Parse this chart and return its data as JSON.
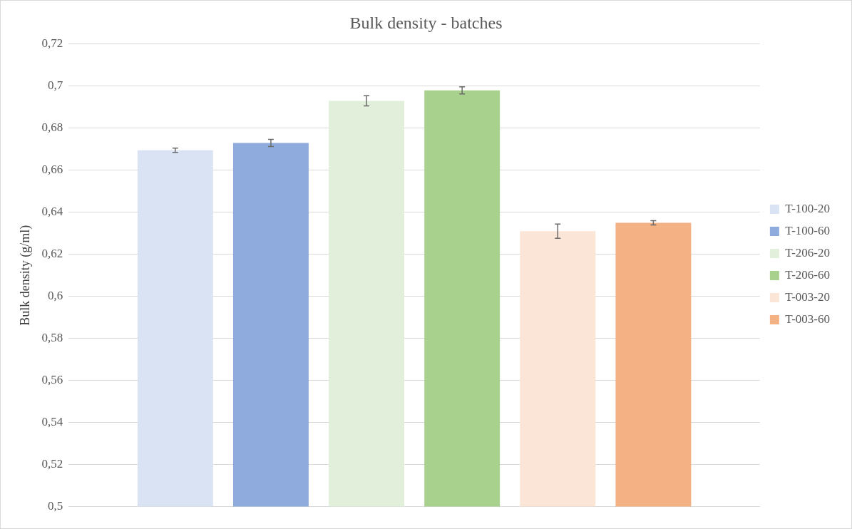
{
  "chart_data": {
    "type": "bar",
    "title": "Bulk density - batches",
    "ylabel": "Bulk density (g/ml)",
    "categories": [
      null
    ],
    "series": [
      {
        "name": "T-100-20",
        "color": "#dae3f3",
        "values": [
          0.6695
        ],
        "errors": [
          0.001
        ]
      },
      {
        "name": "T-100-60",
        "color": "#8faadc",
        "values": [
          0.673
        ],
        "errors": [
          0.0017
        ]
      },
      {
        "name": "T-206-20",
        "color": "#e2efda",
        "values": [
          0.693
        ],
        "errors": [
          0.0024
        ]
      },
      {
        "name": "T-206-60",
        "color": "#a9d18e",
        "values": [
          0.698
        ],
        "errors": [
          0.0017
        ]
      },
      {
        "name": "T-003-20",
        "color": "#fbe5d6",
        "values": [
          0.631
        ],
        "errors": [
          0.0034
        ]
      },
      {
        "name": "T-003-60",
        "color": "#f4b183",
        "values": [
          0.635
        ],
        "errors": [
          0.001
        ]
      }
    ],
    "ylim": [
      0.5,
      0.72
    ],
    "yticks": [
      {
        "value": 0.5,
        "label": "0,5"
      },
      {
        "value": 0.52,
        "label": "0,52"
      },
      {
        "value": 0.54,
        "label": "0,54"
      },
      {
        "value": 0.56,
        "label": "0,56"
      },
      {
        "value": 0.58,
        "label": "0,58"
      },
      {
        "value": 0.6,
        "label": "0,6"
      },
      {
        "value": 0.62,
        "label": "0,62"
      },
      {
        "value": 0.64,
        "label": "0,64"
      },
      {
        "value": 0.66,
        "label": "0,66"
      },
      {
        "value": 0.68,
        "label": "0,68"
      },
      {
        "value": 0.7,
        "label": "0,7"
      },
      {
        "value": 0.72,
        "label": "0,72"
      }
    ],
    "grid": "y",
    "legend": "right"
  }
}
